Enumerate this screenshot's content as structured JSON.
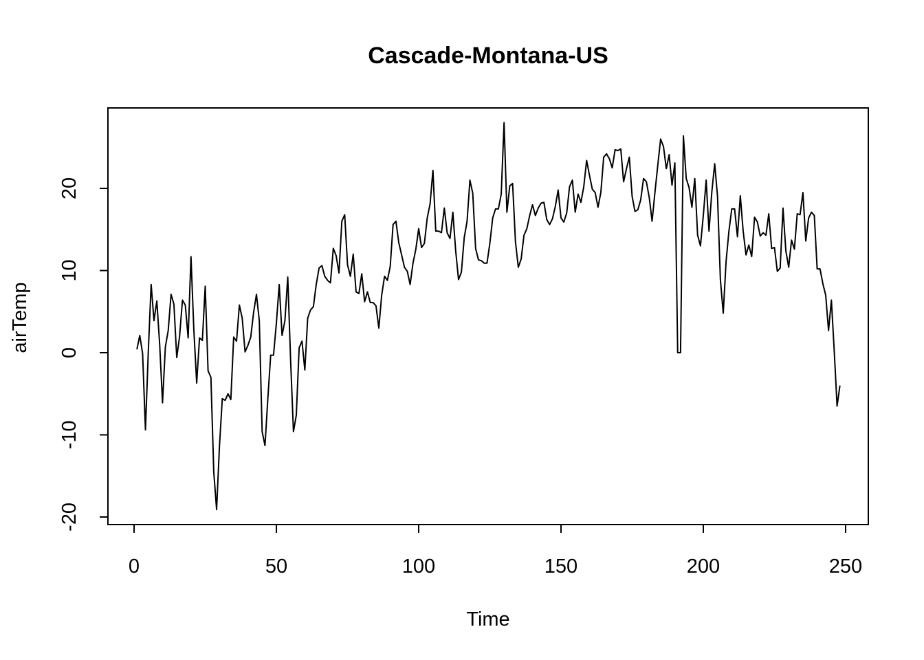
{
  "chart_data": {
    "type": "line",
    "title": "Cascade-Montana-US",
    "xlabel": "Time",
    "ylabel": "airTemp",
    "xlim": [
      0,
      250
    ],
    "ylim": [
      -20,
      28
    ],
    "x_ticks": [
      0,
      50,
      100,
      150,
      200,
      250
    ],
    "y_ticks": [
      -20,
      -10,
      0,
      10,
      20
    ],
    "x_tick_labels": [
      "0",
      "50",
      "100",
      "150",
      "200",
      "250"
    ],
    "y_tick_labels": [
      "-20",
      "-10",
      "0",
      "10",
      "20"
    ],
    "grid": false,
    "line_color": "#000000",
    "series": [
      {
        "values": [
          0.4,
          2.1,
          -0.1,
          -9.4,
          0.1,
          8.3,
          3.9,
          6.3,
          1.0,
          -6.1,
          0.7,
          2.7,
          7.1,
          5.9,
          -0.6,
          2.0,
          6.4,
          5.8,
          1.8,
          11.7,
          2.8,
          -3.7,
          1.8,
          1.5,
          8.1,
          -2.2,
          -3.0,
          -14.5,
          -19.1,
          -11.4,
          -5.6,
          -5.8,
          -5.0,
          -5.7,
          1.9,
          1.4,
          5.8,
          4.2,
          0.1,
          0.9,
          1.9,
          4.9,
          7.1,
          3.9,
          -9.6,
          -11.3,
          -5.6,
          -0.3,
          -0.3,
          3.6,
          8.3,
          2.1,
          3.9,
          9.2,
          -0.9,
          -9.6,
          -7.6,
          0.6,
          1.4,
          -2.1,
          4.2,
          5.2,
          5.6,
          8.3,
          10.3,
          10.6,
          9.3,
          8.8,
          8.5,
          12.7,
          11.8,
          9.7,
          16.0,
          16.8,
          10.7,
          9.3,
          12.0,
          7.4,
          7.2,
          9.6,
          6.2,
          7.4,
          6.1,
          6.1,
          5.7,
          3.0,
          7.0,
          9.3,
          8.8,
          10.5,
          15.6,
          16.0,
          13.4,
          11.9,
          10.4,
          9.9,
          8.3,
          10.9,
          12.6,
          15.1,
          12.8,
          13.3,
          16.4,
          18.1,
          22.2,
          14.8,
          14.8,
          14.6,
          17.6,
          14.6,
          13.9,
          17.1,
          12.4,
          8.9,
          9.8,
          14.0,
          16.0,
          21.0,
          19.4,
          12.7,
          11.3,
          11.2,
          10.9,
          10.9,
          13.3,
          16.4,
          17.5,
          17.5,
          19.3,
          28.0,
          17.1,
          20.3,
          20.6,
          13.5,
          10.4,
          11.4,
          14.3,
          15.1,
          16.7,
          18.0,
          16.7,
          17.6,
          18.2,
          18.3,
          16.2,
          15.6,
          16.3,
          17.8,
          19.8,
          16.4,
          15.9,
          17.0,
          20.2,
          21.0,
          17.1,
          19.3,
          18.3,
          20.2,
          23.4,
          21.6,
          19.9,
          19.5,
          17.7,
          19.5,
          23.8,
          24.2,
          23.6,
          22.5,
          24.7,
          24.6,
          24.8,
          20.8,
          22.4,
          23.8,
          19.0,
          17.2,
          17.4,
          18.6,
          21.2,
          20.8,
          18.9,
          16.0,
          19.5,
          22.8,
          26.0,
          25.1,
          22.4,
          24.1,
          20.4,
          23.1,
          0.0,
          0.0,
          26.4,
          21.2,
          20.1,
          17.7,
          21.2,
          14.3,
          13.0,
          16.7,
          21.0,
          14.8,
          19.6,
          23.0,
          19.0,
          8.9,
          4.8,
          11.1,
          14.8,
          17.5,
          17.5,
          14.1,
          19.1,
          14.8,
          11.9,
          13.1,
          11.7,
          16.5,
          15.9,
          14.2,
          14.6,
          14.3,
          16.9,
          12.7,
          12.8,
          9.9,
          10.3,
          17.6,
          12.4,
          10.4,
          13.7,
          12.6,
          16.9,
          16.8,
          19.5,
          13.6,
          16.4,
          17.1,
          16.7,
          10.2,
          10.2,
          8.4,
          7.0,
          2.7,
          6.4,
          0.2,
          -6.5,
          -4.0
        ]
      }
    ]
  }
}
